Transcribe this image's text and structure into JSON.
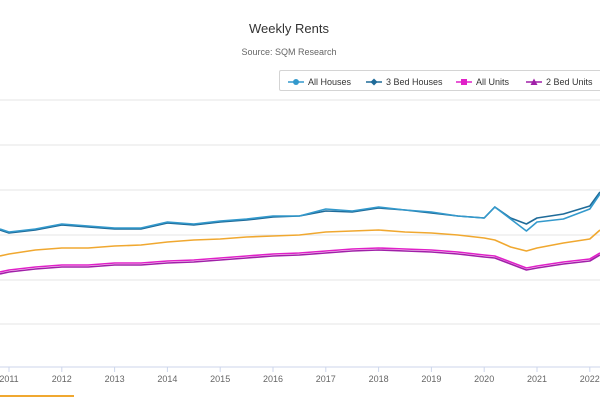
{
  "header": {
    "title": "Weekly Rents",
    "subtitle": "Source: SQM Research"
  },
  "legend": {
    "items": [
      {
        "label": "All Houses",
        "color": "#3399cc",
        "marker": "circle"
      },
      {
        "label": "3 Bed Houses",
        "color": "#1f6b99",
        "marker": "diamond"
      },
      {
        "label": "All Units",
        "color": "#e020c8",
        "marker": "square"
      },
      {
        "label": "2 Bed Units",
        "color": "#a020a8",
        "marker": "triangle"
      }
    ]
  },
  "chart_data": {
    "type": "line",
    "title": "Weekly Rents",
    "subtitle": "Source: SQM Research",
    "x_ticks": [
      "2011",
      "2012",
      "2013",
      "2014",
      "2015",
      "2016",
      "2017",
      "2018",
      "2019",
      "2020",
      "2021",
      "2022"
    ],
    "x": [
      2010.8,
      2011.0,
      2011.5,
      2012.0,
      2012.5,
      2013.0,
      2013.5,
      2014.0,
      2014.5,
      2015.0,
      2015.5,
      2016.0,
      2016.5,
      2017.0,
      2017.5,
      2018.0,
      2018.5,
      2019.0,
      2019.5,
      2020.0,
      2020.2,
      2020.5,
      2020.8,
      2021.0,
      2021.5,
      2022.0,
      2022.3
    ],
    "series": [
      {
        "name": "All Houses",
        "color": "#3399cc",
        "values": [
          229,
          232,
          229,
          224,
          226,
          228,
          228,
          222,
          224,
          221,
          219,
          216,
          216,
          209,
          211,
          207,
          210,
          212,
          216,
          218,
          207,
          219,
          231,
          222,
          219,
          209,
          194
        ]
      },
      {
        "name": "3 Bed Houses",
        "color": "#1f6b99",
        "values": [
          230,
          233,
          230,
          225,
          227,
          229,
          229,
          223,
          225,
          222,
          220,
          217,
          216,
          211,
          212,
          208,
          210,
          213,
          216,
          218,
          207,
          218,
          224,
          218,
          214,
          206,
          192
        ]
      },
      {
        "name": "All Units",
        "color": "#e020c8",
        "values": [
          272,
          270,
          267,
          265,
          265,
          263,
          263,
          261,
          260,
          258,
          256,
          254,
          253,
          251,
          249,
          248,
          249,
          250,
          252,
          255,
          256,
          262,
          268,
          266,
          262,
          259,
          253
        ]
      },
      {
        "name": "2 Bed Units",
        "color": "#a020a8",
        "values": [
          274,
          272,
          269,
          267,
          267,
          265,
          265,
          263,
          262,
          260,
          258,
          256,
          255,
          253,
          251,
          250,
          251,
          252,
          254,
          257,
          258,
          264,
          270,
          268,
          264,
          261,
          255
        ]
      },
      {
        "name": "",
        "color": "#f0a830",
        "values": [
          256,
          254,
          250,
          248,
          248,
          246,
          245,
          242,
          240,
          239,
          237,
          236,
          235,
          232,
          231,
          230,
          232,
          233,
          235,
          238,
          240,
          247,
          251,
          248,
          243,
          239,
          230
        ]
      }
    ],
    "grid": true,
    "legend_position": "top-right",
    "y_tick_labels_visible": false
  }
}
